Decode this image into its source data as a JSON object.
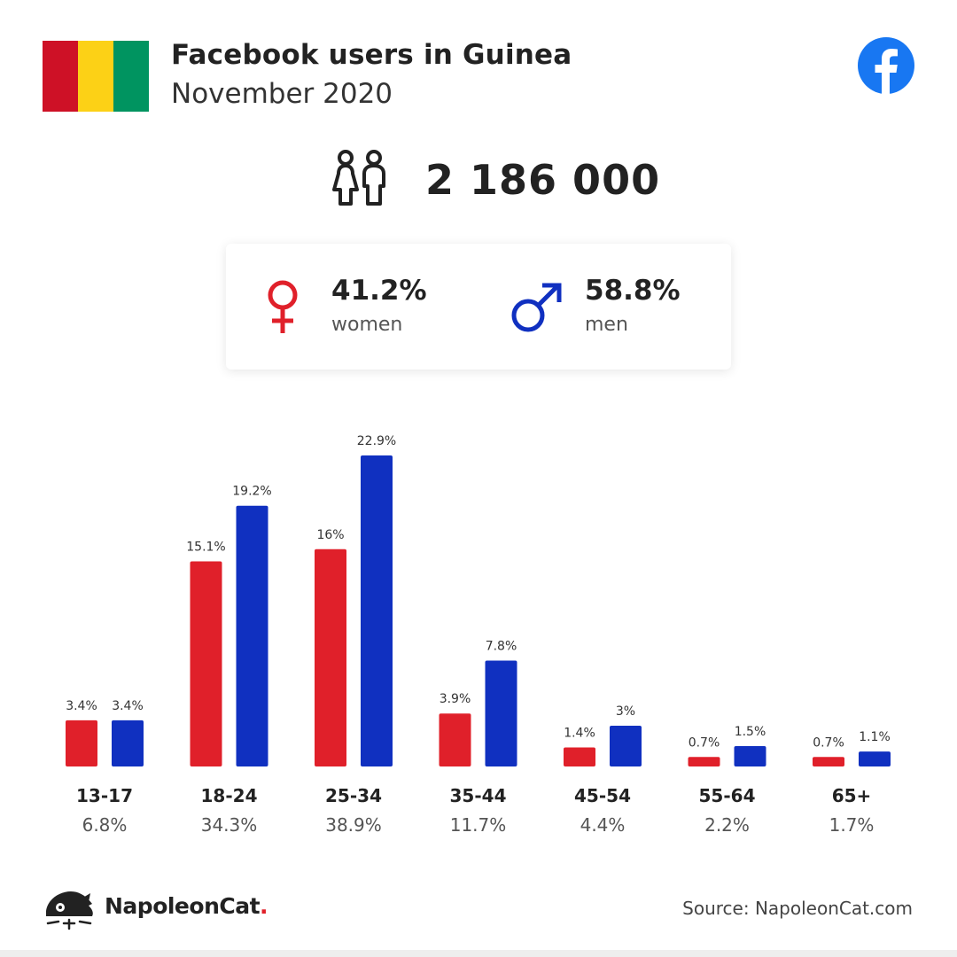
{
  "header": {
    "title": "Facebook users in Guinea",
    "subtitle": "November 2020"
  },
  "flag_colors": [
    "#ce1126",
    "#fcd116",
    "#009460"
  ],
  "icons": {
    "brand": "facebook-icon",
    "total": "people-icon",
    "female": "female-symbol-icon",
    "male": "male-symbol-icon",
    "logo": "napoleoncat-logo-icon"
  },
  "total_users": "2 186 000",
  "gender": {
    "women": {
      "pct": "41.2%",
      "label": "women"
    },
    "men": {
      "pct": "58.8%",
      "label": "men"
    }
  },
  "colors": {
    "women": "#e0202a",
    "men": "#1030c0",
    "facebook": "#1877f2"
  },
  "chart_data": {
    "type": "bar",
    "categories": [
      "13-17",
      "18-24",
      "25-34",
      "35-44",
      "45-54",
      "55-64",
      "65+"
    ],
    "category_totals": [
      "6.8%",
      "34.3%",
      "38.9%",
      "11.7%",
      "4.4%",
      "2.2%",
      "1.7%"
    ],
    "series": [
      {
        "key": "women",
        "values": [
          3.4,
          15.1,
          16,
          3.9,
          1.4,
          0.7,
          0.7
        ],
        "labels": [
          "3.4%",
          "15.1%",
          "16%",
          "3.9%",
          "1.4%",
          "0.7%",
          "0.7%"
        ]
      },
      {
        "key": "men",
        "values": [
          3.4,
          19.2,
          22.9,
          7.8,
          3,
          1.5,
          1.1
        ],
        "labels": [
          "3.4%",
          "19.2%",
          "22.9%",
          "7.8%",
          "3%",
          "1.5%",
          "1.1%"
        ]
      }
    ],
    "ylim": [
      0,
      22.9
    ],
    "grid": false,
    "legend": "none"
  },
  "footer": {
    "brand_name": "NapoleonCat",
    "brand_dot": ".",
    "source": "Source: NapoleonCat.com"
  }
}
